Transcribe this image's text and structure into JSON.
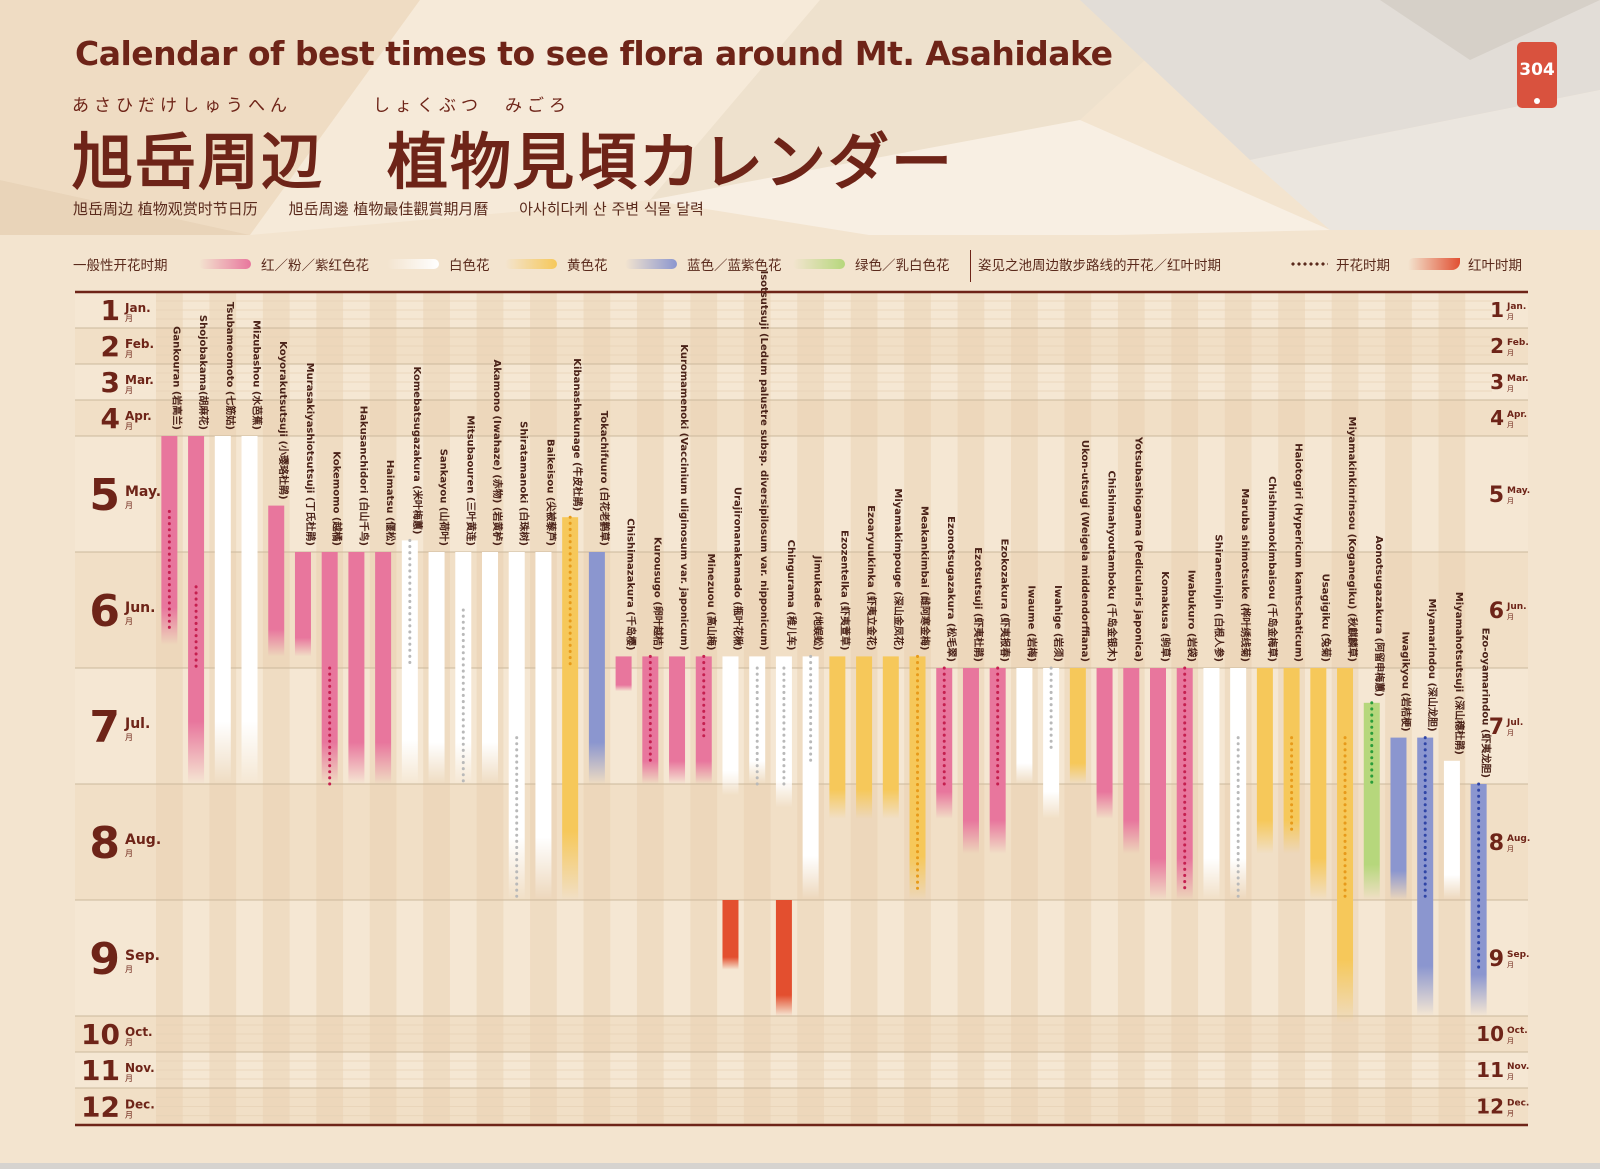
{
  "title_en": "Calendar of best times to see flora around Mt. Asahidake",
  "title_ja": "旭岳周辺　植物見頃カレンダー",
  "furigana_1": "あさひだけしゅうへん",
  "furigana_2": "しょくぶつ　みごろ",
  "subtitles": [
    "旭岳周边 植物观赏时节日历",
    "旭岳周邊 植物最佳觀賞期月曆",
    "아사히다케 산 주변 식물 달력"
  ],
  "page_badge": "304",
  "legend": {
    "general": "一般性开花时期",
    "red": "红／粉／紫红色花",
    "white": "白色花",
    "yellow": "黄色花",
    "blue": "蓝色／蓝紫色花",
    "green": "绿色／乳白色花",
    "pond": "姿见之池周边散步路线的开花／红叶时期",
    "flowering": "开花时期",
    "autumn": "红叶时期"
  },
  "colors": {
    "red": "#e8769d",
    "white": "#ffffff",
    "yellow": "#f6c85a",
    "blue": "#8b96cf",
    "green": "#b6d77c",
    "autumn": "#e34f2f",
    "dot_red": "#c51f4f",
    "dot_white": "#b9b9b9",
    "dot_yellow": "#e79a1a",
    "dot_blue": "#2f45a6",
    "dot_green": "#2a9d3a",
    "title": "#6e2418"
  },
  "chart_data": {
    "type": "gantt",
    "months": [
      {
        "num": "1",
        "en": "Jan.",
        "ja": "月"
      },
      {
        "num": "2",
        "en": "Feb.",
        "ja": "月"
      },
      {
        "num": "3",
        "en": "Mar.",
        "ja": "月"
      },
      {
        "num": "4",
        "en": "Apr.",
        "ja": "月"
      },
      {
        "num": "5",
        "en": "May.",
        "ja": "月"
      },
      {
        "num": "6",
        "en": "Jun.",
        "ja": "月"
      },
      {
        "num": "7",
        "en": "Jul.",
        "ja": "月"
      },
      {
        "num": "8",
        "en": "Aug.",
        "ja": "月"
      },
      {
        "num": "9",
        "en": "Sep.",
        "ja": "月"
      },
      {
        "num": "10",
        "en": "Oct.",
        "ja": "月"
      },
      {
        "num": "11",
        "en": "Nov.",
        "ja": "月"
      },
      {
        "num": "12",
        "en": "Dec.",
        "ja": "月"
      }
    ],
    "plants": [
      {
        "name": "Gankouran (岩高兰)",
        "color": "red",
        "start": 5.0,
        "end": 6.8,
        "dots": [
          5.65,
          6.7
        ]
      },
      {
        "name": "Shojobakama(胡麻花)",
        "color": "red",
        "start": 5.0,
        "end": 8.0,
        "dots": [
          6.3,
          7.0
        ]
      },
      {
        "name": "Tsubameomoto (七筋姑)",
        "color": "white",
        "start": 5.0,
        "end": 8.0
      },
      {
        "name": "Mizubashou (水芭蕉)",
        "color": "white",
        "start": 5.0,
        "end": 8.0
      },
      {
        "name": "Koyorakutsutsuji (小璎珞杜鹃)",
        "color": "red",
        "start": 5.6,
        "end": 6.9
      },
      {
        "name": "Murasakiyashiotsutsuji (丁氏杜鹃)",
        "color": "red",
        "start": 6.0,
        "end": 6.9
      },
      {
        "name": "Kokemomo (越橘)",
        "color": "red",
        "start": 6.0,
        "end": 8.0,
        "dots": [
          7.0,
          8.0
        ]
      },
      {
        "name": "Hakusanchidori (白山千鸟)",
        "color": "red",
        "start": 6.0,
        "end": 8.0
      },
      {
        "name": "Haimatsu (偃松)",
        "color": "red",
        "start": 6.0,
        "end": 8.0
      },
      {
        "name": "Komebatsugazakura (米叶梅蕙)",
        "color": "white",
        "start": 5.9,
        "end": 8.0,
        "dots": [
          5.9,
          7.0
        ]
      },
      {
        "name": "Sankayou (山荷叶)",
        "color": "white",
        "start": 6.0,
        "end": 8.0
      },
      {
        "name": "Mitsubaouren (三叶黄连)",
        "color": "white",
        "start": 6.0,
        "end": 8.0,
        "dots": [
          6.5,
          8.0
        ]
      },
      {
        "name": "Akamono (Iwahaze) (赤物) (岩黄栌)",
        "color": "white",
        "start": 6.0,
        "end": 8.0
      },
      {
        "name": "Shiratamanoki (白珠树)",
        "color": "white",
        "start": 6.0,
        "end": 9.0,
        "dots": [
          7.6,
          9.0
        ]
      },
      {
        "name": "Baikeisou (尖被藜芦)",
        "color": "white",
        "start": 6.0,
        "end": 9.0
      },
      {
        "name": "Kibanashakunage (牛皮杜鹃)",
        "color": "yellow",
        "start": 5.7,
        "end": 9.0,
        "dots": [
          5.7,
          7.0
        ]
      },
      {
        "name": "Tokachifuuro (白花老鹳草)",
        "color": "blue",
        "start": 6.0,
        "end": 8.0
      },
      {
        "name": "Chishimazakura (千岛樱)",
        "color": "red",
        "start": 6.9,
        "end": 7.2
      },
      {
        "name": "Kurousugo (卵叶越桔)",
        "color": "red",
        "start": 6.9,
        "end": 8.0,
        "dots": [
          6.9,
          7.8
        ]
      },
      {
        "name": "Kuromamenoki (Vaccinium uliginosum var. japonicum)",
        "color": "red",
        "start": 6.9,
        "end": 8.0
      },
      {
        "name": "Minezuou (高山梅)",
        "color": "red",
        "start": 6.9,
        "end": 8.0,
        "dots": [
          6.9,
          7.6
        ]
      },
      {
        "name": "Urajironanakamado (瓶叶花楸)",
        "color": "white",
        "start": 6.9,
        "end": 8.1,
        "fall": [
          9.0,
          9.6
        ]
      },
      {
        "name": "Isotsutsuji (Ledum palustre subsp. diversipilosum var. nipponicum)",
        "color": "white",
        "start": 6.9,
        "end": 8.0,
        "dots": [
          7.0,
          8.0
        ]
      },
      {
        "name": "Chingurama (稚儿车)",
        "color": "white",
        "start": 6.9,
        "end": 8.2,
        "dots": [
          7.0,
          8.0
        ],
        "fall": [
          9.0,
          10.0
        ]
      },
      {
        "name": "Jimukade (地蜈蚣)",
        "color": "white",
        "start": 6.9,
        "end": 9.0,
        "dots": [
          6.9,
          7.8
        ]
      },
      {
        "name": "Ezozentelka (虾夷萱草)",
        "color": "yellow",
        "start": 6.9,
        "end": 8.3
      },
      {
        "name": "Ezoaryuukinka (虾夷立金花)",
        "color": "yellow",
        "start": 6.9,
        "end": 8.3
      },
      {
        "name": "Miyamakimpouge (深山金凤花)",
        "color": "yellow",
        "start": 6.9,
        "end": 8.3
      },
      {
        "name": "Meakankimbai (雌阿寒金梅)",
        "color": "yellow",
        "start": 6.9,
        "end": 9.0,
        "dots": [
          6.9,
          8.9
        ]
      },
      {
        "name": "Ezonotsugazakura (松毛翠)",
        "color": "red",
        "start": 7.0,
        "end": 8.3,
        "dots": [
          7.0,
          8.0
        ]
      },
      {
        "name": "Ezotsutsuji (虾夷杜鹃)",
        "color": "red",
        "start": 7.0,
        "end": 8.6
      },
      {
        "name": "Ezokozakura (虾夷报春)",
        "color": "red",
        "start": 7.0,
        "end": 8.6,
        "dots": [
          7.0,
          8.0
        ]
      },
      {
        "name": "Iwaume (岩梅)",
        "color": "white",
        "start": 7.0,
        "end": 8.0
      },
      {
        "name": "Iwahige (岩须)",
        "color": "white",
        "start": 7.0,
        "end": 8.3,
        "dots": [
          7.0,
          7.7
        ]
      },
      {
        "name": "Ukon-utsugi (Weigela middendorffiana)",
        "color": "yellow",
        "start": 7.0,
        "end": 8.0
      },
      {
        "name": "Chishimahyoutamboku (千岛金银木)",
        "color": "red",
        "start": 7.0,
        "end": 8.3
      },
      {
        "name": "Yotsubashiogama (Pedicularis japonica)",
        "color": "red",
        "start": 7.0,
        "end": 8.6
      },
      {
        "name": "Komakusa (驹草)",
        "color": "red",
        "start": 7.0,
        "end": 9.0
      },
      {
        "name": "Iwabukuro (岩袋)",
        "color": "red",
        "start": 7.0,
        "end": 9.0,
        "dots": [
          7.0,
          8.9
        ]
      },
      {
        "name": "Shiraneninjin (白根人参)",
        "color": "white",
        "start": 7.0,
        "end": 9.0
      },
      {
        "name": "Maruba shimotsuke (桦叶绣线菊)",
        "color": "white",
        "start": 7.0,
        "end": 9.0,
        "dots": [
          7.6,
          9.0
        ]
      },
      {
        "name": "Chishimanokimbaisou (千岛金梅草)",
        "color": "yellow",
        "start": 7.0,
        "end": 8.6
      },
      {
        "name": "Haiotogiri (Hypericum kamtschaticum)",
        "color": "yellow",
        "start": 7.0,
        "end": 8.6,
        "dots": [
          7.6,
          8.4
        ]
      },
      {
        "name": "Usagigiku (兔菊)",
        "color": "yellow",
        "start": 7.0,
        "end": 9.0
      },
      {
        "name": "Miyamakinkinrinsou (Koganegiku) (秋麒麟草)",
        "color": "yellow",
        "start": 7.0,
        "end": 10.2,
        "dots": [
          7.6,
          9.0
        ]
      },
      {
        "name": "Aonotsugazakura (阿留申梅蕙)",
        "color": "green",
        "start": 7.3,
        "end": 9.0,
        "dots": [
          7.3,
          8.0
        ]
      },
      {
        "name": "Iwagikyou (岩桔梗)",
        "color": "blue",
        "start": 7.6,
        "end": 9.0
      },
      {
        "name": "Miyamarindou (深山龙胆)",
        "color": "blue",
        "start": 7.6,
        "end": 10.0,
        "dots": [
          7.6,
          9.0
        ]
      },
      {
        "name": "Miyamahotsutsuji (深山穗杜鹃)",
        "color": "white",
        "start": 7.8,
        "end": 9.0
      },
      {
        "name": "Ezo-oyamarindou (虾夷龙胆)",
        "color": "blue",
        "start": 8.0,
        "end": 10.0,
        "dots": [
          8.0,
          9.6
        ]
      }
    ]
  }
}
